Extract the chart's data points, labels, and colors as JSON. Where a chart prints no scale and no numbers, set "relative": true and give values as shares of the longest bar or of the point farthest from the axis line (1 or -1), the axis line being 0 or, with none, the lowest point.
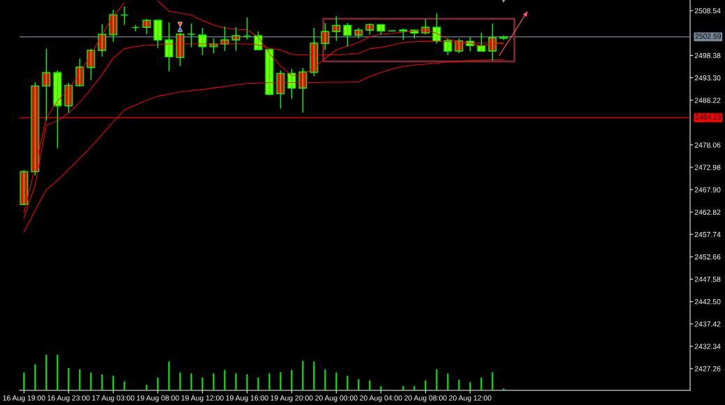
{
  "chart_data": [
    {
      "type": "candlestick",
      "categories": [
        "16 Aug 19:00",
        null,
        null,
        null,
        "16 Aug 23:00",
        null,
        null,
        null,
        "17 Aug 03:00",
        null,
        null,
        null,
        "19 Aug 08:00",
        null,
        null,
        null,
        "19 Aug 12:00",
        null,
        null,
        null,
        "19 Aug 16:00",
        null,
        null,
        null,
        "19 Aug 20:00",
        null,
        null,
        null,
        "20 Aug 00:00",
        null,
        null,
        null,
        "20 Aug 04:00",
        null,
        null,
        null,
        "20 Aug 08:00",
        null,
        null,
        null,
        "20 Aug 12:00",
        null,
        null,
        null
      ],
      "ohlc": [
        [
          2464.54,
          2472.29,
          2464.4,
          2471.98
        ],
        [
          2471.98,
          2492.28,
          2471.12,
          2491.44
        ],
        [
          2491.44,
          2499.88,
          2483.53,
          2494.45
        ],
        [
          2494.45,
          2494.97,
          2477.29,
          2486.95
        ],
        [
          2486.95,
          2492.12,
          2485.37,
          2491.6
        ],
        [
          2491.54,
          2497.66,
          2491.33,
          2495.72
        ],
        [
          2495.65,
          2499.88,
          2492.76,
          2499.52
        ],
        [
          2499.52,
          2505.42,
          2498.14,
          2503.16
        ],
        [
          2503.09,
          2508.74,
          2501.46,
          2507.59
        ],
        [
          2507.53,
          2509.54,
          2505.31,
          2507.53
        ],
        [
          2504.68,
          2505.26,
          2503.88,
          2504.68
        ],
        [
          2504.74,
          2506.69,
          2503.2,
          2506.32
        ],
        [
          2506.32,
          2506.53,
          2500.04,
          2501.89
        ],
        [
          2501.89,
          2505.9,
          2494.7,
          2498.09
        ],
        [
          2497.93,
          2503.52,
          2495.97,
          2503.2
        ],
        [
          2503.2,
          2505.58,
          2500.24,
          2503.2
        ],
        [
          2503.0,
          2504.63,
          2498.46,
          2500.4
        ],
        [
          2500.4,
          2502.25,
          2498.82,
          2500.94
        ],
        [
          2500.94,
          2504.95,
          2499.41,
          2501.89
        ],
        [
          2501.89,
          2504.79,
          2499.45,
          2502.84
        ],
        [
          2502.73,
          2507.0,
          2501.99,
          2502.73
        ],
        [
          2502.84,
          2503.84,
          2499.67,
          2499.67
        ],
        [
          2499.72,
          2499.72,
          2489.32,
          2489.54
        ],
        [
          2489.7,
          2494.97,
          2486.32,
          2494.29
        ],
        [
          2494.29,
          2495.29,
          2488.53,
          2490.97
        ],
        [
          2490.97,
          2495.56,
          2485.37,
          2494.61
        ],
        [
          2494.55,
          2504.63,
          2493.66,
          2501.15
        ],
        [
          2501.1,
          2505.74,
          2499.61,
          2503.79
        ],
        [
          2503.79,
          2507.27,
          2501.67,
          2505.21
        ],
        [
          2505.21,
          2505.74,
          2500.4,
          2502.94
        ],
        [
          2503.0,
          2504.63,
          2502.25,
          2504.11
        ],
        [
          2504.11,
          2505.63,
          2503.05,
          2505.37
        ],
        [
          2505.37,
          2505.37,
          2503.05,
          2503.95
        ],
        [
          2503.95,
          2503.95,
          2503.95,
          2503.95
        ],
        [
          2503.95,
          2504.47,
          2501.89,
          2504.15
        ],
        [
          2504.11,
          2504.11,
          2502.25,
          2503.47
        ],
        [
          2503.47,
          2506.64,
          2503.16,
          2504.74
        ],
        [
          2504.74,
          2507.95,
          2501.04,
          2501.67
        ],
        [
          2501.73,
          2502.21,
          2498.46,
          2499.36
        ],
        [
          2499.36,
          2502.21,
          2498.88,
          2501.67
        ],
        [
          2501.57,
          2502.52,
          2499.29,
          2500.62
        ],
        [
          2500.62,
          2503.52,
          2499.36,
          2499.36
        ],
        [
          2499.36,
          2505.58,
          2497.14,
          2502.41
        ],
        [
          2502.3,
          2502.89,
          2501.89,
          2502.59
        ]
      ],
      "color": "#00ff00",
      "colors": [
        "#ff0000",
        "#ff0000",
        "#ff0000",
        "#7fff00",
        "#ff0000",
        "#ff0000",
        "#ff0000",
        "#ff0000",
        "#ff0000",
        "#00ff00",
        "#00ff00",
        "#ff0000",
        "#7fff00",
        "#7fff00",
        "#ff0000",
        "#00ff00",
        "#7fff00",
        "#ff0000",
        "#ff0000",
        "#ff0000",
        "#00ff00",
        "#7fff00",
        "#7fff00",
        "#ff0000",
        "#7fff00",
        "#ff0000",
        "#ff0000",
        "#ff0000",
        "#ff0000",
        "#7fff00",
        "#ff0000",
        "#ff0000",
        "#7fff00",
        "#00ff00",
        "#ff0000",
        "#7fff00",
        "#ff0000",
        "#7fff00",
        "#7fff00",
        "#ff0000",
        "#7fff00",
        "#7fff00",
        "#ff0000",
        "#ff0000"
      ],
      "series": [
        {
          "type": "line",
          "color": "#ff0000",
          "values": [
            2462.7,
            2473.0,
            2484.1,
            2488.0,
            2490.7,
            2494.2,
            2498.5,
            2503.1,
            2507.3,
            2510.3,
            null,
            null,
            2510.8,
            2508.4,
            2508.0,
            2507.5,
            2506.3,
            2505.3,
            2504.6,
            2504.3,
            2504.2,
            2502.6,
            2498.8,
            2496.0,
            2493.8,
            2493.9,
            2495.6,
            2497.7,
            2499.6,
            2500.5,
            2501.3,
            2502.6,
            2503.2,
            2503.4,
            2503.7,
            2503.9,
            2504.2,
            2503.4,
            2502.0,
            2501.6,
            2501.1,
            2500.5,
            2501.0,
            2501.1
          ]
        },
        {
          "type": "line",
          "color": "#ff0000",
          "values": [
            2461.4,
            2469.0,
            2482.5,
            2483.6,
            2485.3,
            2487.7,
            2490.7,
            2494.0,
            2497.8,
            2499.9,
            2500.4,
            2500.7,
            2500.8,
            2501.0,
            2501.0,
            2501.0,
            2501.0,
            2501.0,
            2501.0,
            2501.0,
            2501.0,
            2500.8,
            2500.0,
            2499.6,
            2498.6,
            2498.5,
            2498.5,
            2498.5,
            2498.5,
            2498.6,
            2498.8,
            2499.9,
            2500.2,
            2500.7,
            2501.3,
            2501.5,
            2501.6,
            2501.6,
            2501.5,
            2501.2,
            2501.2,
            2501.2,
            2501.2,
            2501.2
          ]
        },
        {
          "type": "line",
          "color": "#ff0000",
          "values": [
            2458.3,
            2463.2,
            2467.9,
            2470.0,
            2472.5,
            2475.0,
            2477.6,
            2480.4,
            2483.3,
            2486.0,
            2487.1,
            2488.2,
            2489.1,
            2489.6,
            2490.1,
            2490.4,
            2490.6,
            2491.0,
            2491.3,
            2491.7,
            2492.0,
            2492.1,
            2492.2,
            2492.2,
            2492.2,
            2492.2,
            2492.2,
            2492.3,
            2492.3,
            2492.3,
            2492.4,
            2493.6,
            2494.5,
            2495.3,
            2495.9,
            2496.2,
            2496.4,
            2496.6,
            2496.9,
            2497.0,
            2497.2,
            2497.3,
            2497.4,
            2497.4
          ]
        }
      ],
      "ylim": [
        2422.33,
        2510.96
      ],
      "yticks": [
        2508.54,
        2498.38,
        {
          "value": 2493.3,
          "label": "2493.30"
        },
        2488.22,
        2478.06,
        2472.98,
        {
          "value": 2467.9,
          "label": "2467.90"
        },
        2462.82,
        2457.74,
        2452.66,
        2447.58,
        {
          "value": 2442.5,
          "label": "2442.50"
        },
        2437.42,
        2432.34,
        2427.26
      ],
      "ref_lines": [
        {
          "axis": "y",
          "value": 2502.59,
          "label": "2502.59",
          "color": "#778899"
        },
        {
          "axis": "y",
          "value": 2484.23,
          "label": "2484.23",
          "color": "#ff0000"
        }
      ]
    },
    {
      "type": "bar",
      "relative": true,
      "color": "#00ff00",
      "categories": [
        null,
        null,
        null,
        null,
        null,
        null,
        null,
        null,
        null,
        null,
        null,
        null,
        null,
        null,
        null,
        null,
        null,
        null,
        null,
        null,
        null,
        null,
        null,
        null,
        null,
        null,
        null,
        null,
        null,
        null,
        null,
        null,
        null,
        null,
        null,
        null,
        null,
        null,
        null,
        null,
        null,
        null,
        null,
        null
      ],
      "values": [
        0.5,
        0.73,
        1.0,
        1.0,
        0.63,
        0.59,
        0.5,
        0.45,
        0.41,
        0.25,
        null,
        0.16,
        0.36,
        0.81,
        0.5,
        0.48,
        0.36,
        0.48,
        0.57,
        0.48,
        0.45,
        0.36,
        0.48,
        0.51,
        0.57,
        0.83,
        0.81,
        0.59,
        0.5,
        0.41,
        0.32,
        0.28,
        0.12,
        null,
        0.12,
        0.12,
        0.28,
        0.59,
        0.48,
        0.3,
        0.23,
        0.36,
        0.51,
        0.05
      ]
    }
  ]
}
